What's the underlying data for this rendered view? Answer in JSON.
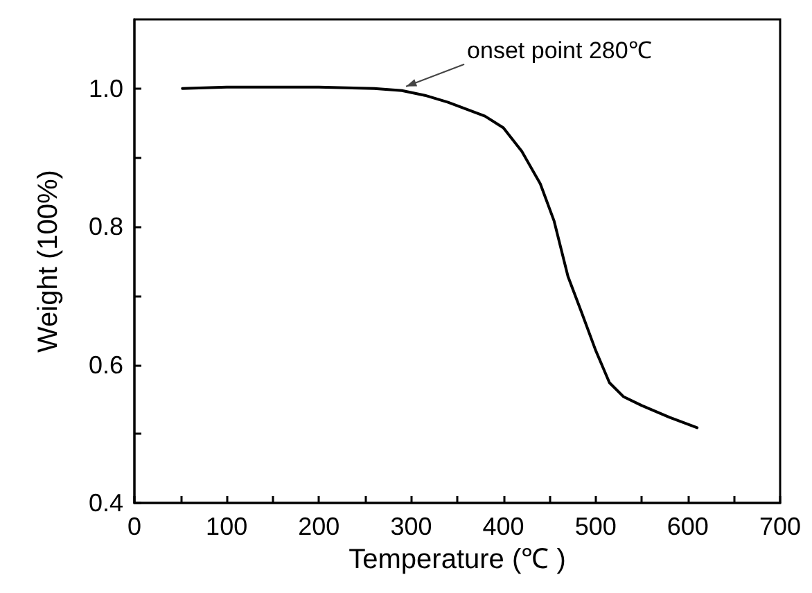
{
  "chart_data": {
    "type": "line",
    "xlabel": "Temperature (℃ )",
    "ylabel": "Weight (100%)",
    "annotations": [
      {
        "text": "onset point 280℃",
        "x": 290,
        "y": 0.997
      }
    ],
    "xlim": [
      0,
      700
    ],
    "xticks": [
      0,
      {
        "value": 50,
        "label": null
      },
      100,
      {
        "value": 150,
        "label": null
      },
      200,
      {
        "value": 250,
        "label": null
      },
      300,
      {
        "value": 350,
        "label": null
      },
      400,
      {
        "value": 450,
        "label": null
      },
      500,
      {
        "value": 550,
        "label": null
      },
      600,
      {
        "value": 650,
        "label": null
      },
      700
    ],
    "ylim": [
      0.4,
      1.1
    ],
    "yticks": [
      0.4,
      {
        "value": 0.5,
        "label": null
      },
      0.6,
      {
        "value": 0.7,
        "label": null
      },
      0.8,
      {
        "value": 0.9,
        "label": null
      },
      {
        "value": 1,
        "label": "1.0"
      }
    ],
    "grid": false,
    "marker": "none",
    "line_style": "solid",
    "series": [
      {
        "color": "#000000",
        "x": [
          52,
          100,
          150,
          200,
          260,
          290,
          315,
          340,
          380,
          400,
          420,
          440,
          455,
          470,
          485,
          500,
          515,
          530,
          550,
          580,
          610
        ],
        "values": [
          1.0,
          1.002,
          1.002,
          1.002,
          1.0,
          0.997,
          0.99,
          0.98,
          0.96,
          0.943,
          0.909,
          0.862,
          0.808,
          0.728,
          0.675,
          0.621,
          0.574,
          0.554,
          0.541,
          0.524,
          0.509
        ]
      }
    ]
  }
}
